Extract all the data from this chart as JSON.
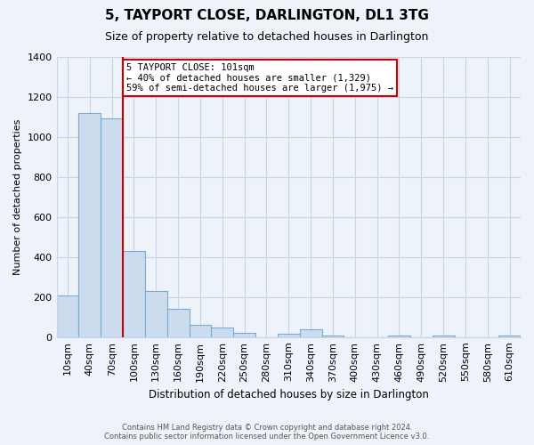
{
  "title": "5, TAYPORT CLOSE, DARLINGTON, DL1 3TG",
  "subtitle": "Size of property relative to detached houses in Darlington",
  "xlabel": "Distribution of detached houses by size in Darlington",
  "ylabel": "Number of detached properties",
  "bar_labels": [
    "10sqm",
    "40sqm",
    "70sqm",
    "100sqm",
    "130sqm",
    "160sqm",
    "190sqm",
    "220sqm",
    "250sqm",
    "280sqm",
    "310sqm",
    "340sqm",
    "370sqm",
    "400sqm",
    "430sqm",
    "460sqm",
    "490sqm",
    "520sqm",
    "550sqm",
    "580sqm",
    "610sqm"
  ],
  "bar_values": [
    210,
    1120,
    1095,
    430,
    230,
    140,
    60,
    47,
    20,
    0,
    15,
    38,
    10,
    0,
    0,
    8,
    0,
    10,
    0,
    0,
    8
  ],
  "bar_color": "#ccdcef",
  "bar_edge_color": "#7aaad0",
  "vline_x_index": 2,
  "vline_color": "#cc0000",
  "annotation_line1": "5 TAYPORT CLOSE: 101sqm",
  "annotation_line2": "← 40% of detached houses are smaller (1,329)",
  "annotation_line3": "59% of semi-detached houses are larger (1,975) →",
  "annotation_box_color": "#ffffff",
  "annotation_box_edgecolor": "#cc0000",
  "ylim": [
    0,
    1400
  ],
  "yticks": [
    0,
    200,
    400,
    600,
    800,
    1000,
    1200,
    1400
  ],
  "footnote1": "Contains HM Land Registry data © Crown copyright and database right 2024.",
  "footnote2": "Contains public sector information licensed under the Open Government Licence v3.0.",
  "bg_color": "#eef2f9",
  "grid_color": "#c8d4e8",
  "title_fontsize": 11,
  "subtitle_fontsize": 9
}
